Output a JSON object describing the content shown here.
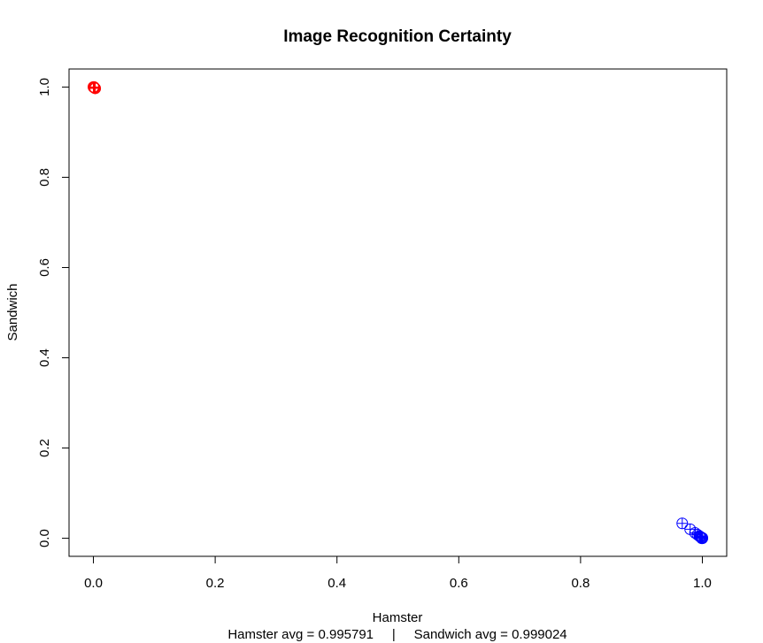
{
  "chart_data": {
    "type": "scatter",
    "title": "Image Recognition Certainty",
    "xlabel": "Hamster",
    "ylabel": "Sandwich",
    "subtitle": "Hamster avg = 0.995791     |     Sandwich avg = 0.999024",
    "xlim": [
      -0.04,
      1.04
    ],
    "ylim": [
      -0.04,
      1.04
    ],
    "xticks": [
      "0.0",
      "0.2",
      "0.4",
      "0.6",
      "0.8",
      "1.0"
    ],
    "yticks": [
      "0.0",
      "0.2",
      "0.4",
      "0.6",
      "0.8",
      "1.0"
    ],
    "grid": false,
    "series": [
      {
        "color": "#ff0000",
        "marker": "circle-plus",
        "points": [
          [
            0.001,
            0.999
          ],
          [
            0.002,
            0.998
          ],
          [
            0.001,
            1.0
          ],
          [
            0.0,
            1.0
          ],
          [
            0.003,
            0.997
          ]
        ]
      },
      {
        "color": "#0000ff",
        "marker": "circle-plus",
        "points": [
          [
            0.967,
            0.033
          ],
          [
            0.98,
            0.02
          ],
          [
            0.988,
            0.012
          ],
          [
            0.992,
            0.008
          ],
          [
            0.995,
            0.005
          ],
          [
            0.997,
            0.003
          ],
          [
            0.998,
            0.002
          ],
          [
            0.999,
            0.001
          ],
          [
            1.0,
            0.0
          ],
          [
            0.996,
            0.004
          ],
          [
            0.999,
            0.0
          ],
          [
            1.0,
            0.001
          ]
        ]
      }
    ]
  }
}
